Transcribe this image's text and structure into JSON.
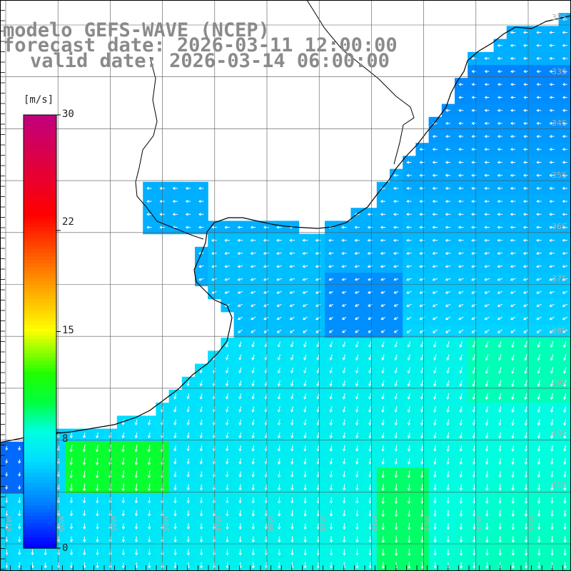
{
  "title": {
    "model": "modelo GEFS-WAVE (NCEP)",
    "forecast_date": "forecast date: 2026-03-11 12:00:00",
    "valid_date": "valid date: 2026-03-14 06:00:00"
  },
  "colorbar": {
    "unit": "[m/s]",
    "min": 0,
    "max": 30,
    "ticks": [
      "30",
      "22",
      "15",
      "8",
      "0"
    ],
    "tick_values": [
      30,
      22,
      15,
      8,
      0
    ],
    "stops": [
      {
        "v": 0,
        "color": "#0000ff"
      },
      {
        "v": 3,
        "color": "#007fff"
      },
      {
        "v": 6,
        "color": "#00dfff"
      },
      {
        "v": 8,
        "color": "#00ffdf"
      },
      {
        "v": 10,
        "color": "#00ff40"
      },
      {
        "v": 12,
        "color": "#20ff00"
      },
      {
        "v": 15,
        "color": "#ffff00"
      },
      {
        "v": 19,
        "color": "#ff8000"
      },
      {
        "v": 23,
        "color": "#ff0000"
      },
      {
        "v": 30,
        "color": "#c00080"
      }
    ]
  },
  "latitude_labels": [
    "32S",
    "33S",
    "34S",
    "35S",
    "36S",
    "37S",
    "38S",
    "39S",
    "40S",
    "41S"
  ],
  "longitude_labels": [
    "61W",
    "60W",
    "59W",
    "58W",
    "57W",
    "56W",
    "55W",
    "54W",
    "53W",
    "52W",
    "51W"
  ],
  "colors": {
    "land": "#ffffff",
    "grid": "#555555",
    "coast": "#000000",
    "arrow": "#ffffff",
    "title": "#8a8a8a"
  }
}
